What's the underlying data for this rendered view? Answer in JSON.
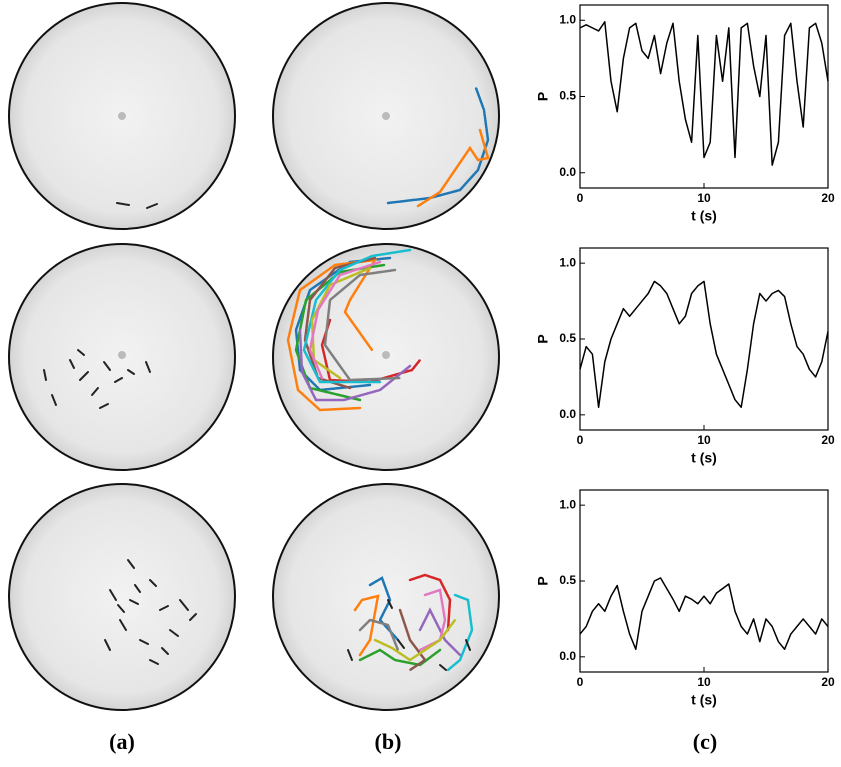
{
  "chart_data": [
    {
      "type": "line",
      "x_label": "t (s)",
      "y_label": "P",
      "x": [
        0,
        0.5,
        1,
        1.5,
        2,
        2.5,
        3,
        3.5,
        4,
        4.5,
        5,
        5.5,
        6,
        6.5,
        7,
        7.5,
        8,
        8.5,
        9,
        9.5,
        10,
        10.5,
        11,
        11.5,
        12,
        12.5,
        13,
        13.5,
        14,
        14.5,
        15,
        15.5,
        16,
        16.5,
        17,
        17.5,
        18,
        18.5,
        19,
        19.5,
        20
      ],
      "values": [
        0.95,
        0.97,
        0.95,
        0.93,
        0.99,
        0.6,
        0.4,
        0.75,
        0.95,
        0.98,
        0.8,
        0.75,
        0.9,
        0.65,
        0.85,
        0.98,
        0.6,
        0.35,
        0.2,
        0.9,
        0.1,
        0.2,
        0.9,
        0.6,
        0.95,
        0.1,
        0.95,
        0.98,
        0.7,
        0.5,
        0.9,
        0.05,
        0.2,
        0.9,
        0.98,
        0.6,
        0.3,
        0.95,
        0.98,
        0.85,
        0.6
      ],
      "color": "#000000",
      "xlim": [
        0,
        20
      ],
      "xticks": [
        0,
        10,
        20
      ],
      "ylim": [
        -0.1,
        1.1
      ],
      "yticks": [
        {
          "value": 0,
          "label": "0.0"
        },
        0.5,
        {
          "value": 1,
          "label": "1.0"
        }
      ]
    },
    {
      "type": "line",
      "x_label": "t (s)",
      "y_label": "P",
      "x": [
        0,
        0.5,
        1,
        1.5,
        2,
        2.5,
        3,
        3.5,
        4,
        4.5,
        5,
        5.5,
        6,
        6.5,
        7,
        7.5,
        8,
        8.5,
        9,
        9.5,
        10,
        10.5,
        11,
        11.5,
        12,
        12.5,
        13,
        13.5,
        14,
        14.5,
        15,
        15.5,
        16,
        16.5,
        17,
        17.5,
        18,
        18.5,
        19,
        19.5,
        20
      ],
      "values": [
        0.3,
        0.45,
        0.4,
        0.05,
        0.35,
        0.5,
        0.6,
        0.7,
        0.65,
        0.7,
        0.75,
        0.8,
        0.88,
        0.85,
        0.8,
        0.7,
        0.6,
        0.65,
        0.8,
        0.85,
        0.88,
        0.6,
        0.4,
        0.3,
        0.2,
        0.1,
        0.05,
        0.3,
        0.6,
        0.8,
        0.75,
        0.8,
        0.82,
        0.78,
        0.6,
        0.45,
        0.4,
        0.3,
        0.25,
        0.35,
        0.55
      ],
      "color": "#000000",
      "xlim": [
        0,
        20
      ],
      "xticks": [
        0,
        10,
        20
      ],
      "ylim": [
        -0.1,
        1.1
      ],
      "yticks": [
        {
          "value": 0,
          "label": "0.0"
        },
        0.5,
        {
          "value": 1,
          "label": "1.0"
        }
      ]
    },
    {
      "type": "line",
      "x_label": "t (s)",
      "y_label": "P",
      "x": [
        0,
        0.5,
        1,
        1.5,
        2,
        2.5,
        3,
        3.5,
        4,
        4.5,
        5,
        5.5,
        6,
        6.5,
        7,
        7.5,
        8,
        8.5,
        9,
        9.5,
        10,
        10.5,
        11,
        11.5,
        12,
        12.5,
        13,
        13.5,
        14,
        14.5,
        15,
        15.5,
        16,
        16.5,
        17,
        17.5,
        18,
        18.5,
        19,
        19.5,
        20
      ],
      "values": [
        0.15,
        0.2,
        0.3,
        0.35,
        0.3,
        0.4,
        0.47,
        0.3,
        0.15,
        0.05,
        0.3,
        0.4,
        0.5,
        0.52,
        0.45,
        0.38,
        0.3,
        0.4,
        0.38,
        0.35,
        0.4,
        0.35,
        0.42,
        0.45,
        0.48,
        0.3,
        0.2,
        0.15,
        0.25,
        0.1,
        0.25,
        0.2,
        0.1,
        0.05,
        0.15,
        0.2,
        0.25,
        0.2,
        0.15,
        0.25,
        0.2
      ],
      "color": "#000000",
      "xlim": [
        0,
        20
      ],
      "xticks": [
        0,
        10,
        20
      ],
      "ylim": [
        -0.1,
        1.1
      ],
      "yticks": [
        {
          "value": 0,
          "label": "0.0"
        },
        0.5,
        {
          "value": 1,
          "label": "1.0"
        }
      ]
    }
  ],
  "panel_labels": [
    "(a)",
    "(b)",
    "(c)"
  ]
}
